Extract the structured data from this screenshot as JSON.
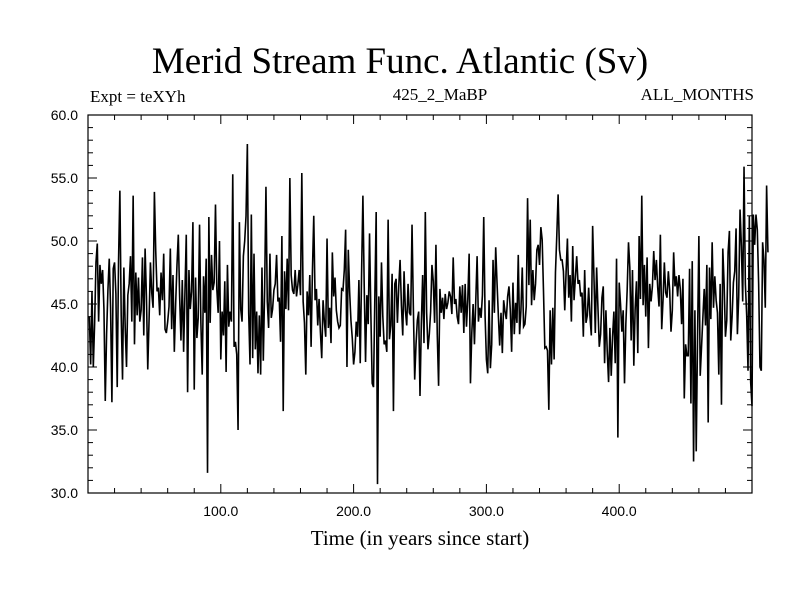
{
  "chart_data": {
    "type": "line",
    "title": "Merid Stream Func. Atlantic (Sv)",
    "left_label": "Expt = teXYh",
    "center_label": "425_2_MaBP",
    "right_label": "ALL_MONTHS",
    "xlabel": "Time (in years since start)",
    "ylabel": "",
    "xlim": [
      0,
      500
    ],
    "ylim": [
      30,
      60
    ],
    "x_ticks": [
      100,
      200,
      300,
      400
    ],
    "x_tick_labels": [
      "100.0",
      "200.0",
      "300.0",
      "400.0"
    ],
    "y_ticks": [
      30,
      35,
      40,
      45,
      50,
      55,
      60
    ],
    "y_tick_labels": [
      "30.0",
      "35.0",
      "40.0",
      "45.0",
      "50.0",
      "55.0",
      "60.0"
    ],
    "grid": false,
    "series": [
      {
        "color": "#000000",
        "x_start": 1,
        "x_step": 1,
        "values": [
          44.0,
          40.2,
          46.0,
          40.0,
          43.5,
          48.3,
          49.8,
          43.6,
          48.1,
          46.6,
          47.7,
          44.6,
          37.3,
          42.6,
          46.1,
          48.6,
          44.7,
          37.2,
          47.8,
          48.3,
          45.8,
          38.4,
          48.4,
          54.0,
          44.1,
          39.0,
          47.9,
          43.2,
          40.0,
          45.7,
          46.6,
          48.8,
          43.6,
          53.6,
          41.8,
          47.5,
          44.1,
          47.1,
          43.6,
          44.5,
          48.7,
          42.5,
          49.4,
          45.6,
          39.8,
          43.8,
          48.3,
          45.9,
          44.7,
          53.9,
          49.2,
          46.0,
          46.3,
          44.1,
          47.5,
          45.3,
          49.0,
          43.0,
          42.7,
          43.6,
          44.8,
          49.4,
          43.0,
          47.3,
          41.2,
          45.0,
          48.1,
          50.5,
          45.6,
          42.1,
          46.9,
          41.2,
          45.9,
          50.5,
          38.0,
          47.7,
          44.6,
          46.0,
          51.5,
          38.2,
          47.1,
          42.3,
          43.9,
          51.3,
          43.5,
          39.4,
          47.2,
          44.3,
          48.6,
          31.6,
          51.9,
          43.5,
          48.9,
          46.1,
          46.7,
          52.9,
          46.2,
          44.3,
          50.0,
          40.6,
          44.4,
          42.5,
          46.8,
          39.6,
          48.1,
          43.2,
          44.4,
          43.6,
          55.3,
          41.6,
          42.0,
          41.0,
          35.0,
          51.5,
          44.6,
          43.6,
          48.8,
          50.0,
          52.0,
          57.7,
          44.3,
          40.2,
          52.1,
          40.7,
          49.0,
          41.4,
          44.4,
          39.5,
          44.1,
          39.4,
          47.9,
          40.5,
          46.1,
          54.3,
          45.2,
          43.1,
          49.0,
          43.9,
          44.6,
          46.1,
          46.6,
          48.9,
          45.2,
          45.5,
          42.0,
          50.4,
          36.5,
          47.6,
          44.6,
          48.6,
          44.5,
          55.0,
          47.3,
          46.1,
          45.8,
          47.7,
          45.6,
          46.5,
          47.7,
          45.7,
          55.4,
          45.2,
          43.5,
          39.4,
          46.0,
          44.1,
          47.3,
          41.6,
          47.6,
          52.0,
          45.3,
          46.2,
          43.3,
          45.4,
          42.8,
          40.7,
          45.3,
          43.6,
          42.4,
          50.2,
          43.1,
          44.7,
          41.9,
          49.1,
          45.6,
          47.1,
          44.5,
          43.6,
          43.1,
          43.3,
          46.2,
          46.1,
          47.7,
          50.9,
          40.0,
          49.3,
          46.0,
          43.7,
          42.3,
          40.2,
          41.2,
          43.6,
          42.4,
          46.9,
          40.3,
          47.4,
          53.6,
          46.4,
          40.4,
          45.7,
          43.4,
          50.6,
          44.2,
          38.7,
          38.4,
          45.6,
          52.3,
          30.7,
          45.6,
          42.4,
          48.3,
          44.0,
          41.8,
          42.1,
          41.2,
          51.7,
          42.2,
          43.3,
          47.4,
          36.5,
          46.6,
          47.0,
          43.5,
          46.4,
          48.5,
          44.9,
          42.5,
          47.6,
          44.5,
          43.3,
          46.6,
          44.3,
          44.1,
          51.3,
          44.7,
          39.0,
          41.8,
          43.7,
          44.4,
          37.7,
          43.4,
          47.3,
          41.9,
          52.3,
          44.3,
          41.4,
          42.6,
          44.4,
          48.1,
          46.8,
          43.5,
          49.7,
          42.6,
          38.5,
          46.2,
          44.3,
          45.5,
          43.8,
          45.8,
          44.6,
          45.1,
          46.0,
          45.6,
          44.2,
          48.7,
          45.0,
          45.4,
          44.0,
          43.4,
          46.4,
          44.3,
          46.5,
          42.7,
          46.6,
          43.2,
          45.4,
          49.0,
          38.7,
          42.7,
          45.0,
          41.8,
          45.3,
          48.8,
          43.6,
          44.7,
          43.9,
          45.7,
          51.9,
          44.1,
          40.6,
          39.5,
          45.3,
          39.9,
          41.8,
          48.5,
          44.3,
          49.5,
          46.7,
          44.1,
          41.7,
          44.3,
          41.1,
          45.3,
          44.4,
          43.8,
          45.6,
          46.4,
          44.5,
          41.2,
          46.7,
          42.6,
          45.1,
          43.5,
          48.9,
          42.6,
          44.5,
          47.9,
          43.2,
          43.4,
          44.8,
          53.4,
          46.5,
          51.7,
          44.9,
          47.7,
          45.3,
          46.6,
          49.3,
          49.7,
          48.1,
          51.1,
          50.1,
          46.0,
          41.5,
          41.6,
          41.3,
          36.6,
          44.5,
          40.2,
          44.7,
          40.6,
          47.5,
          50.4,
          53.7,
          49.3,
          48.5,
          48.5,
          47.6,
          44.5,
          47.5,
          50.2,
          45.5,
          47.3,
          43.6,
          49.6,
          45.3,
          47.1,
          48.8,
          46.6,
          46.9,
          45.6,
          45.9,
          42.4,
          47.7,
          43.5,
          44.1,
          46.3,
          44.0,
          42.5,
          51.2,
          47.1,
          42.7,
          47.9,
          44.7,
          41.6,
          42.6,
          45.5,
          46.4,
          40.3,
          44.5,
          41.2,
          38.8,
          43.1,
          39.3,
          42.4,
          44.4,
          40.3,
          48.6,
          34.4,
          46.7,
          45.0,
          42.8,
          44.5,
          38.7,
          43.4,
          46.1,
          49.9,
          47.9,
          42.1,
          47.7,
          40.1,
          44.6,
          46.8,
          41.1,
          50.4,
          45.4,
          53.6,
          44.9,
          48.1,
          44.0,
          48.7,
          41.5,
          46.6,
          45.2,
          46.4,
          49.2,
          46.9,
          48.5,
          46.3,
          44.8,
          50.5,
          43.0,
          45.3,
          48.3,
          45.9,
          45.5,
          47.6,
          46.1,
          42.8,
          44.5,
          49.1,
          46.4,
          47.2,
          45.6,
          47.3,
          46.2,
          43.4,
          47.0,
          37.5,
          41.8,
          40.9,
          40.9,
          47.8,
          37.1,
          48.4,
          32.5,
          44.5,
          33.3,
          42.4,
          50.4,
          39.3,
          41.6,
          43.9,
          46.2,
          43.3,
          48.1,
          35.6,
          47.9,
          43.8,
          49.9,
          44.7,
          47.2,
          45.3,
          44.3,
          39.4,
          46.6,
          37.0,
          49.4,
          46.6,
          42.4,
          43.7,
          49.1,
          50.8,
          42.1,
          44.0,
          46.7,
          47.6,
          51.0,
          42.6,
          45.6,
          52.5,
          49.6,
          45.2,
          55.9,
          46.6,
          44.1,
          39.7,
          52.0,
          38.8,
          36.9,
          52.1,
          49.7,
          52.1,
          50.9,
          46.6,
          40.0,
          39.7,
          49.9,
          48.5,
          44.7,
          54.4,
          49.1
        ]
      }
    ]
  }
}
